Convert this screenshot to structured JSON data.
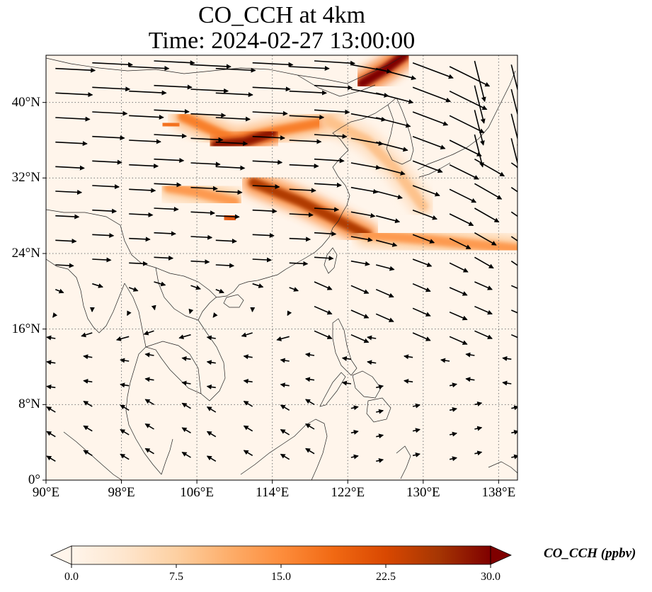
{
  "title": {
    "line1": "CO_CCH at 4km",
    "line2": "Time: 2024-02-27 13:00:00"
  },
  "map": {
    "lon_range": [
      90,
      140
    ],
    "lat_range": [
      0,
      45
    ],
    "lat_ticks": [
      {
        "value": 0,
        "label": "0°"
      },
      {
        "value": 8,
        "label": "8°N"
      },
      {
        "value": 16,
        "label": "16°N"
      },
      {
        "value": 24,
        "label": "24°N"
      },
      {
        "value": 32,
        "label": "32°N"
      },
      {
        "value": 40,
        "label": "40°N"
      }
    ],
    "lon_ticks": [
      {
        "value": 90,
        "label": "90°E"
      },
      {
        "value": 98,
        "label": "98°E"
      },
      {
        "value": 106,
        "label": "106°E"
      },
      {
        "value": 114,
        "label": "114°E"
      },
      {
        "value": 122,
        "label": "122°E"
      },
      {
        "value": 130,
        "label": "130°E"
      },
      {
        "value": 138,
        "label": "138°E"
      }
    ],
    "gridlines": true,
    "field_colors": [
      "#fff5eb",
      "#fdd8b0",
      "#fd9c5b",
      "#e6550d",
      "#a63603",
      "#7f0000"
    ],
    "vector_color": "#000000"
  },
  "colorbar": {
    "label": "CO_CCH (ppbv)",
    "vmin": 0,
    "vmax": 30,
    "extend": "both",
    "ticks": [
      {
        "value": 0,
        "label": "0.0"
      },
      {
        "value": 7.5,
        "label": "7.5"
      },
      {
        "value": 15,
        "label": "15.0"
      },
      {
        "value": 22.5,
        "label": "22.5"
      },
      {
        "value": 30,
        "label": "30.0"
      }
    ],
    "colors": [
      "#fff5eb",
      "#fee6ce",
      "#fdd0a2",
      "#fdae6b",
      "#fd8d3c",
      "#f16913",
      "#d94801",
      "#a63603",
      "#7f0000"
    ]
  },
  "plumes": [
    {
      "name": "north-china-plume",
      "points": [
        [
          104.5,
          38.5
        ],
        [
          110,
          36
        ],
        [
          114.5,
          37
        ],
        [
          120,
          38
        ]
      ],
      "level": 0.55
    },
    {
      "name": "central-china-core",
      "points": [
        [
          108,
          35.5
        ],
        [
          111,
          35.8
        ],
        [
          114,
          36.8
        ]
      ],
      "level": 0.95
    },
    {
      "name": "yangtze-band",
      "points": [
        [
          112,
          31.5
        ],
        [
          117,
          29.5
        ],
        [
          121,
          27.5
        ],
        [
          124,
          26
        ]
      ],
      "level": 0.85
    },
    {
      "name": "east-china-sea-band",
      "points": [
        [
          124,
          26
        ],
        [
          130,
          25.5
        ],
        [
          135,
          25
        ],
        [
          140,
          24.5
        ]
      ],
      "level": 0.45
    },
    {
      "name": "northeast-core",
      "points": [
        [
          123.5,
          42
        ],
        [
          126,
          43.5
        ],
        [
          128,
          45
        ]
      ],
      "level": 1.0
    },
    {
      "name": "korea-band",
      "points": [
        [
          120,
          38
        ],
        [
          124,
          36
        ],
        [
          127,
          33
        ],
        [
          130,
          29
        ]
      ],
      "level": 0.3
    },
    {
      "name": "southwest-patch",
      "points": [
        [
          103,
          31
        ],
        [
          106,
          30.5
        ],
        [
          110,
          29.5
        ]
      ],
      "level": 0.45
    },
    {
      "name": "sichuan-dot",
      "points": [
        [
          109,
          28
        ],
        [
          110,
          27.6
        ]
      ],
      "level": 0.7
    },
    {
      "name": "gansu-dot",
      "points": [
        [
          102.5,
          37.8
        ],
        [
          104,
          37.5
        ]
      ],
      "level": 0.6
    }
  ]
}
